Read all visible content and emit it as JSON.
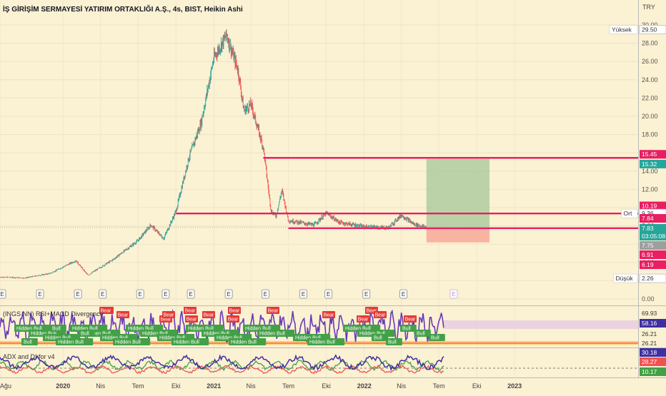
{
  "header": {
    "title": "İŞ GİRİŞİM SERMAYESİ YATIRIM ORTAKLIĞI A.Ş., 4s, BIST, Heikin Ashi",
    "currency": "TRY"
  },
  "colors": {
    "background": "#fbf1d3",
    "up": "#26a69a",
    "down": "#ef5350",
    "level_line": "#e91e63",
    "target_zone": "#a5c79a",
    "stop_zone": "#f8a595",
    "osc_line": "#673ab7",
    "bear_label": "#e53935",
    "bull_label": "#43a047",
    "adx_plus": "#43a047",
    "adx_minus": "#ef5350",
    "adx_line": "#3f2fa0"
  },
  "chart_data": [
    {
      "type": "candlestick",
      "title": "İŞ GİRİŞİM SERMAYESİ YATIRIM ORTAKLIĞI A.Ş., 4s, BIST, Heikin Ashi",
      "x": [
        "Ağu",
        "2020",
        "Nis",
        "Tem",
        "Eki",
        "2021",
        "Nis",
        "Tem",
        "Eki",
        "2022",
        "Nis",
        "Tem",
        "Eki",
        "2023"
      ],
      "x_ticks": [
        "Ağu",
        "2020",
        "Nis",
        "Tem",
        "Eki",
        "2021",
        "Nis",
        "Tem",
        "Eki",
        "2022",
        "Nis",
        "Tem",
        "Eki",
        "2023"
      ],
      "y_ticks": [
        0.0,
        2.0,
        4.0,
        6.0,
        8.0,
        10.0,
        12.0,
        14.0,
        16.0,
        18.0,
        20.0,
        22.0,
        24.0,
        26.0,
        28.0,
        30.0
      ],
      "ylim": [
        0,
        30
      ],
      "y_unit": "TRY",
      "price_path": [
        {
          "x": "2019-08",
          "y": 2.4
        },
        {
          "x": "2019-10",
          "y": 2.3
        },
        {
          "x": "2019-12",
          "y": 2.8
        },
        {
          "x": "2020-02",
          "y": 4.2
        },
        {
          "x": "2020-03",
          "y": 2.6
        },
        {
          "x": "2020-05",
          "y": 4.3
        },
        {
          "x": "2020-07",
          "y": 6.4
        },
        {
          "x": "2020-08",
          "y": 8.1
        },
        {
          "x": "2020-09",
          "y": 6.6
        },
        {
          "x": "2020-10",
          "y": 9.6
        },
        {
          "x": "2020-11",
          "y": 15.4
        },
        {
          "x": "2020-12",
          "y": 19.3
        },
        {
          "x": "2021-01",
          "y": 26.4
        },
        {
          "x": "2021-02",
          "y": 28.9
        },
        {
          "x": "2021-03",
          "y": 25.0
        },
        {
          "x": "2021-03-15",
          "y": 20.6
        },
        {
          "x": "2021-04",
          "y": 21.3
        },
        {
          "x": "2021-05",
          "y": 16.6
        },
        {
          "x": "2021-05-20",
          "y": 9.6
        },
        {
          "x": "2021-06",
          "y": 9.1
        },
        {
          "x": "2021-06-15",
          "y": 11.9
        },
        {
          "x": "2021-07",
          "y": 8.6
        },
        {
          "x": "2021-09",
          "y": 8.1
        },
        {
          "x": "2021-10",
          "y": 9.4
        },
        {
          "x": "2021-11",
          "y": 8.4
        },
        {
          "x": "2022-01",
          "y": 7.9
        },
        {
          "x": "2022-03",
          "y": 7.8
        },
        {
          "x": "2022-04",
          "y": 9.2
        },
        {
          "x": "2022-05",
          "y": 8.2
        },
        {
          "x": "2022-06",
          "y": 7.83
        }
      ],
      "horizontal_levels": [
        {
          "price": 15.45,
          "from": "2021-05"
        },
        {
          "price": 9.36,
          "from": "2020-10"
        },
        {
          "price": 7.75,
          "from": "2021-07"
        }
      ],
      "position": {
        "entry": 7.83,
        "target": 15.32,
        "stop": 6.19,
        "from": "2022-06",
        "to": "2022-11"
      },
      "price_labels": [
        {
          "text": "Yüksek",
          "value": "29.50"
        },
        {
          "text": "",
          "value": "15.45"
        },
        {
          "text": "",
          "value": "15.32"
        },
        {
          "text": "",
          "value": "10.19"
        },
        {
          "text": "Ort",
          "value": "9.36"
        },
        {
          "text": "",
          "value": "7.84"
        },
        {
          "text": "",
          "value": "7.83"
        },
        {
          "text": "",
          "value": "03:05:08"
        },
        {
          "text": "",
          "value": "7.75"
        },
        {
          "text": "",
          "value": "6.91"
        },
        {
          "text": "",
          "value": "6.19"
        },
        {
          "text": "Düşük",
          "value": "2.26"
        }
      ],
      "events": [
        "E",
        "E",
        "E",
        "E",
        "E",
        "E",
        "E",
        "E",
        "E",
        "E",
        "E",
        "E",
        "E"
      ]
    },
    {
      "type": "line",
      "title": "(INGS NN) RSI+MACD Divergence",
      "y_labels": [
        "69.93",
        "58.16",
        "26.21",
        "26.21"
      ],
      "labels": {
        "bear": [
          "Bear",
          "Bear",
          "Bear",
          "Bear",
          "Bear",
          "Bear",
          "Bear",
          "Bear",
          "Bear",
          "Bear",
          "Bear",
          "Bear",
          "Bear",
          "Bear",
          "Bear",
          "Bear"
        ],
        "bull": [
          "Hidden Bull",
          "Hidden Bull",
          "Hidden Bull",
          "Hidden Bull",
          "Hidden Bull",
          "Hidden Bull",
          "Hidden Bull",
          "Hidden Bull",
          "Hidden Bull",
          "Hidden Bull",
          "Hidden Bull",
          "Hidden Bull",
          "Hidden Bull",
          "Hidden Bull",
          "Hidden Bull",
          "Hidden Bull",
          "Hidden Bull",
          "Hidden Bull",
          "Hidden Bull",
          "Hidden Bull",
          "Hidden Bull",
          "Hidden Bull",
          "Bull",
          "Bull",
          "Bull",
          "Bull",
          "Bull",
          "Bull",
          "Bull",
          "Bull"
        ]
      }
    },
    {
      "type": "line",
      "title": "ADX and DI for v4",
      "y_labels": [
        "30.18",
        "28.27",
        "10.17"
      ]
    }
  ]
}
